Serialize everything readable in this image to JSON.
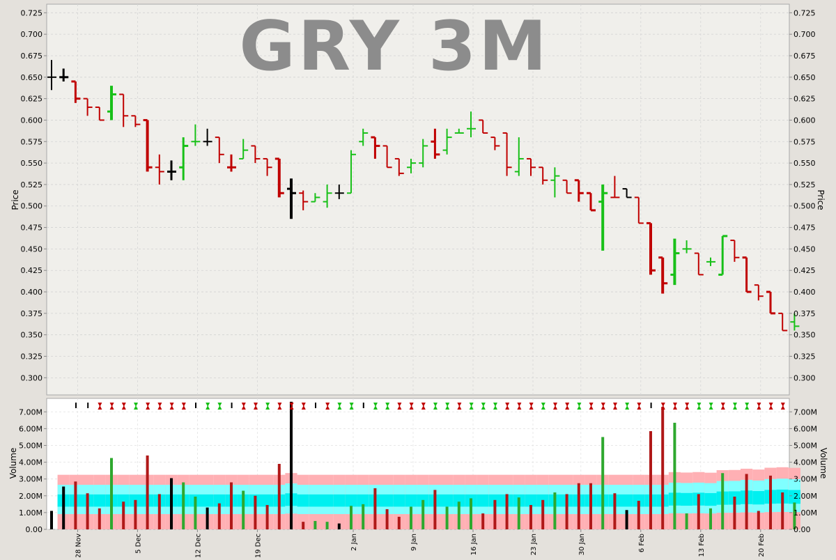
{
  "chart_data": {
    "type": "ohlc",
    "title": "GRY 3M",
    "colors": {
      "up": "#18c018",
      "down": "#c00000",
      "neutral": "#000000",
      "volume_up": "#2ea82e",
      "volume_down": "#b01818",
      "band_outer": "#ffb0b4",
      "band_middle": "#80ffff",
      "band_inner": "#00f0f0",
      "plot_bg": "#f0efeb",
      "volume_bg": "#ffffff"
    },
    "price_panel": {
      "ylabel": "Price",
      "ylim": [
        0.28,
        0.735
      ],
      "yticks": [
        "0.725",
        "0.700",
        "0.675",
        "0.650",
        "0.625",
        "0.600",
        "0.575",
        "0.550",
        "0.525",
        "0.500",
        "0.475",
        "0.450",
        "0.425",
        "0.400",
        "0.375",
        "0.350",
        "0.325",
        "0.300"
      ],
      "grid": true
    },
    "volume_panel": {
      "ylabel": "Volume",
      "ylim": [
        0,
        7.8
      ],
      "yticks": [
        "7.00M",
        "6.00M",
        "5.00M",
        "4.00M",
        "3.00M",
        "2.00M",
        "1.00M",
        "0.00"
      ],
      "grid": true
    },
    "x_axis": {
      "labels": [
        "28 Nov",
        "5 Dec",
        "12 Dec",
        "19 Dec",
        "2 Jan",
        "9 Jan",
        "16 Jan",
        "23 Jan",
        "30 Jan",
        "6 Feb",
        "13 Feb",
        "20 Feb"
      ],
      "label_bar_index": [
        2,
        7,
        12,
        17,
        25,
        30,
        35,
        40,
        44,
        49,
        54,
        59
      ]
    },
    "bars": [
      {
        "o": 0.65,
        "h": 0.67,
        "l": 0.635,
        "c": 0.65,
        "v": 1.1,
        "d": "n"
      },
      {
        "o": 0.65,
        "h": 0.66,
        "l": 0.645,
        "c": 0.65,
        "v": 2.55,
        "d": "n"
      },
      {
        "o": 0.645,
        "h": 0.645,
        "l": 0.62,
        "c": 0.625,
        "v": 2.85,
        "d": "d"
      },
      {
        "o": 0.625,
        "h": 0.625,
        "l": 0.605,
        "c": 0.615,
        "v": 2.15,
        "d": "d"
      },
      {
        "o": 0.615,
        "h": 0.615,
        "l": 0.6,
        "c": 0.6,
        "v": 1.25,
        "d": "d"
      },
      {
        "o": 0.61,
        "h": 0.64,
        "l": 0.6,
        "c": 0.63,
        "v": 4.25,
        "d": "u"
      },
      {
        "o": 0.63,
        "h": 0.63,
        "l": 0.592,
        "c": 0.605,
        "v": 1.65,
        "d": "d"
      },
      {
        "o": 0.605,
        "h": 0.605,
        "l": 0.592,
        "c": 0.595,
        "v": 1.75,
        "d": "d"
      },
      {
        "o": 0.6,
        "h": 0.6,
        "l": 0.54,
        "c": 0.545,
        "v": 4.4,
        "d": "d"
      },
      {
        "o": 0.545,
        "h": 0.56,
        "l": 0.525,
        "c": 0.54,
        "v": 2.1,
        "d": "d"
      },
      {
        "o": 0.54,
        "h": 0.553,
        "l": 0.53,
        "c": 0.54,
        "v": 3.05,
        "d": "n"
      },
      {
        "o": 0.545,
        "h": 0.58,
        "l": 0.53,
        "c": 0.57,
        "v": 2.8,
        "d": "u"
      },
      {
        "o": 0.575,
        "h": 0.595,
        "l": 0.57,
        "c": 0.575,
        "v": 1.95,
        "d": "u"
      },
      {
        "o": 0.575,
        "h": 0.59,
        "l": 0.57,
        "c": 0.575,
        "v": 1.3,
        "d": "n"
      },
      {
        "o": 0.58,
        "h": 0.58,
        "l": 0.55,
        "c": 0.56,
        "v": 1.55,
        "d": "d"
      },
      {
        "o": 0.545,
        "h": 0.56,
        "l": 0.54,
        "c": 0.545,
        "v": 2.8,
        "d": "d"
      },
      {
        "o": 0.555,
        "h": 0.578,
        "l": 0.555,
        "c": 0.565,
        "v": 2.3,
        "d": "u"
      },
      {
        "o": 0.57,
        "h": 0.57,
        "l": 0.55,
        "c": 0.555,
        "v": 2.0,
        "d": "d"
      },
      {
        "o": 0.555,
        "h": 0.555,
        "l": 0.535,
        "c": 0.545,
        "v": 1.45,
        "d": "d"
      },
      {
        "o": 0.555,
        "h": 0.555,
        "l": 0.51,
        "c": 0.515,
        "v": 3.9,
        "d": "d"
      },
      {
        "o": 0.52,
        "h": 0.532,
        "l": 0.485,
        "c": 0.515,
        "v": 7.6,
        "d": "n"
      },
      {
        "o": 0.515,
        "h": 0.518,
        "l": 0.495,
        "c": 0.505,
        "v": 0.45,
        "d": "d"
      },
      {
        "o": 0.505,
        "h": 0.515,
        "l": 0.505,
        "c": 0.51,
        "v": 0.5,
        "d": "u"
      },
      {
        "o": 0.505,
        "h": 0.525,
        "l": 0.498,
        "c": 0.515,
        "v": 0.45,
        "d": "u"
      },
      {
        "o": 0.515,
        "h": 0.525,
        "l": 0.508,
        "c": 0.515,
        "v": 0.35,
        "d": "n"
      },
      {
        "o": 0.515,
        "h": 0.565,
        "l": 0.515,
        "c": 0.56,
        "v": 1.4,
        "d": "u"
      },
      {
        "o": 0.575,
        "h": 0.59,
        "l": 0.57,
        "c": 0.585,
        "v": 1.5,
        "d": "u"
      },
      {
        "o": 0.58,
        "h": 0.58,
        "l": 0.555,
        "c": 0.57,
        "v": 2.45,
        "d": "d"
      },
      {
        "o": 0.57,
        "h": 0.57,
        "l": 0.545,
        "c": 0.545,
        "v": 1.2,
        "d": "d"
      },
      {
        "o": 0.555,
        "h": 0.555,
        "l": 0.535,
        "c": 0.538,
        "v": 0.75,
        "d": "d"
      },
      {
        "o": 0.545,
        "h": 0.555,
        "l": 0.538,
        "c": 0.55,
        "v": 1.35,
        "d": "u"
      },
      {
        "o": 0.55,
        "h": 0.578,
        "l": 0.545,
        "c": 0.57,
        "v": 1.75,
        "d": "u"
      },
      {
        "o": 0.575,
        "h": 0.59,
        "l": 0.555,
        "c": 0.56,
        "v": 2.35,
        "d": "d"
      },
      {
        "o": 0.565,
        "h": 0.59,
        "l": 0.56,
        "c": 0.58,
        "v": 1.35,
        "d": "u"
      },
      {
        "o": 0.585,
        "h": 0.59,
        "l": 0.585,
        "c": 0.585,
        "v": 1.65,
        "d": "u"
      },
      {
        "o": 0.59,
        "h": 0.61,
        "l": 0.58,
        "c": 0.59,
        "v": 1.85,
        "d": "u"
      },
      {
        "o": 0.6,
        "h": 0.6,
        "l": 0.585,
        "c": 0.585,
        "v": 0.95,
        "d": "d"
      },
      {
        "o": 0.58,
        "h": 0.58,
        "l": 0.565,
        "c": 0.57,
        "v": 1.75,
        "d": "d"
      },
      {
        "o": 0.585,
        "h": 0.585,
        "l": 0.535,
        "c": 0.545,
        "v": 2.1,
        "d": "d"
      },
      {
        "o": 0.54,
        "h": 0.58,
        "l": 0.535,
        "c": 0.555,
        "v": 1.9,
        "d": "u"
      },
      {
        "o": 0.555,
        "h": 0.555,
        "l": 0.535,
        "c": 0.545,
        "v": 1.45,
        "d": "d"
      },
      {
        "o": 0.545,
        "h": 0.545,
        "l": 0.525,
        "c": 0.53,
        "v": 1.75,
        "d": "d"
      },
      {
        "o": 0.53,
        "h": 0.545,
        "l": 0.51,
        "c": 0.535,
        "v": 2.2,
        "d": "u"
      },
      {
        "o": 0.53,
        "h": 0.53,
        "l": 0.515,
        "c": 0.515,
        "v": 2.1,
        "d": "d"
      },
      {
        "o": 0.53,
        "h": 0.53,
        "l": 0.505,
        "c": 0.515,
        "v": 2.75,
        "d": "d"
      },
      {
        "o": 0.515,
        "h": 0.515,
        "l": 0.495,
        "c": 0.495,
        "v": 2.75,
        "d": "d"
      },
      {
        "o": 0.505,
        "h": 0.525,
        "l": 0.448,
        "c": 0.515,
        "v": 5.5,
        "d": "u"
      },
      {
        "o": 0.51,
        "h": 0.535,
        "l": 0.51,
        "c": 0.51,
        "v": 2.15,
        "d": "d"
      },
      {
        "o": 0.52,
        "h": 0.52,
        "l": 0.51,
        "c": 0.51,
        "v": 1.15,
        "d": "n"
      },
      {
        "o": 0.51,
        "h": 0.51,
        "l": 0.48,
        "c": 0.48,
        "v": 1.7,
        "d": "d"
      },
      {
        "o": 0.48,
        "h": 0.48,
        "l": 0.42,
        "c": 0.425,
        "v": 5.85,
        "d": "d"
      },
      {
        "o": 0.44,
        "h": 0.44,
        "l": 0.398,
        "c": 0.41,
        "v": 7.3,
        "d": "d"
      },
      {
        "o": 0.42,
        "h": 0.462,
        "l": 0.408,
        "c": 0.445,
        "v": 6.35,
        "d": "u"
      },
      {
        "o": 0.45,
        "h": 0.46,
        "l": 0.445,
        "c": 0.45,
        "v": 0.95,
        "d": "u"
      },
      {
        "o": 0.445,
        "h": 0.445,
        "l": 0.42,
        "c": 0.42,
        "v": 2.1,
        "d": "d"
      },
      {
        "o": 0.435,
        "h": 0.44,
        "l": 0.43,
        "c": 0.435,
        "v": 1.25,
        "d": "u"
      },
      {
        "o": 0.42,
        "h": 0.465,
        "l": 0.42,
        "c": 0.465,
        "v": 3.35,
        "d": "u"
      },
      {
        "o": 0.46,
        "h": 0.46,
        "l": 0.435,
        "c": 0.44,
        "v": 1.95,
        "d": "d"
      },
      {
        "o": 0.44,
        "h": 0.44,
        "l": 0.4,
        "c": 0.4,
        "v": 3.3,
        "d": "d"
      },
      {
        "o": 0.408,
        "h": 0.408,
        "l": 0.39,
        "c": 0.395,
        "v": 1.1,
        "d": "d"
      },
      {
        "o": 0.4,
        "h": 0.4,
        "l": 0.375,
        "c": 0.375,
        "v": 3.2,
        "d": "d"
      },
      {
        "o": 0.375,
        "h": 0.375,
        "l": 0.355,
        "c": 0.355,
        "v": 2.2,
        "d": "d"
      },
      {
        "o": 0.365,
        "h": 0.375,
        "l": 0.355,
        "c": 0.36,
        "v": 1.6,
        "d": "u"
      }
    ]
  }
}
